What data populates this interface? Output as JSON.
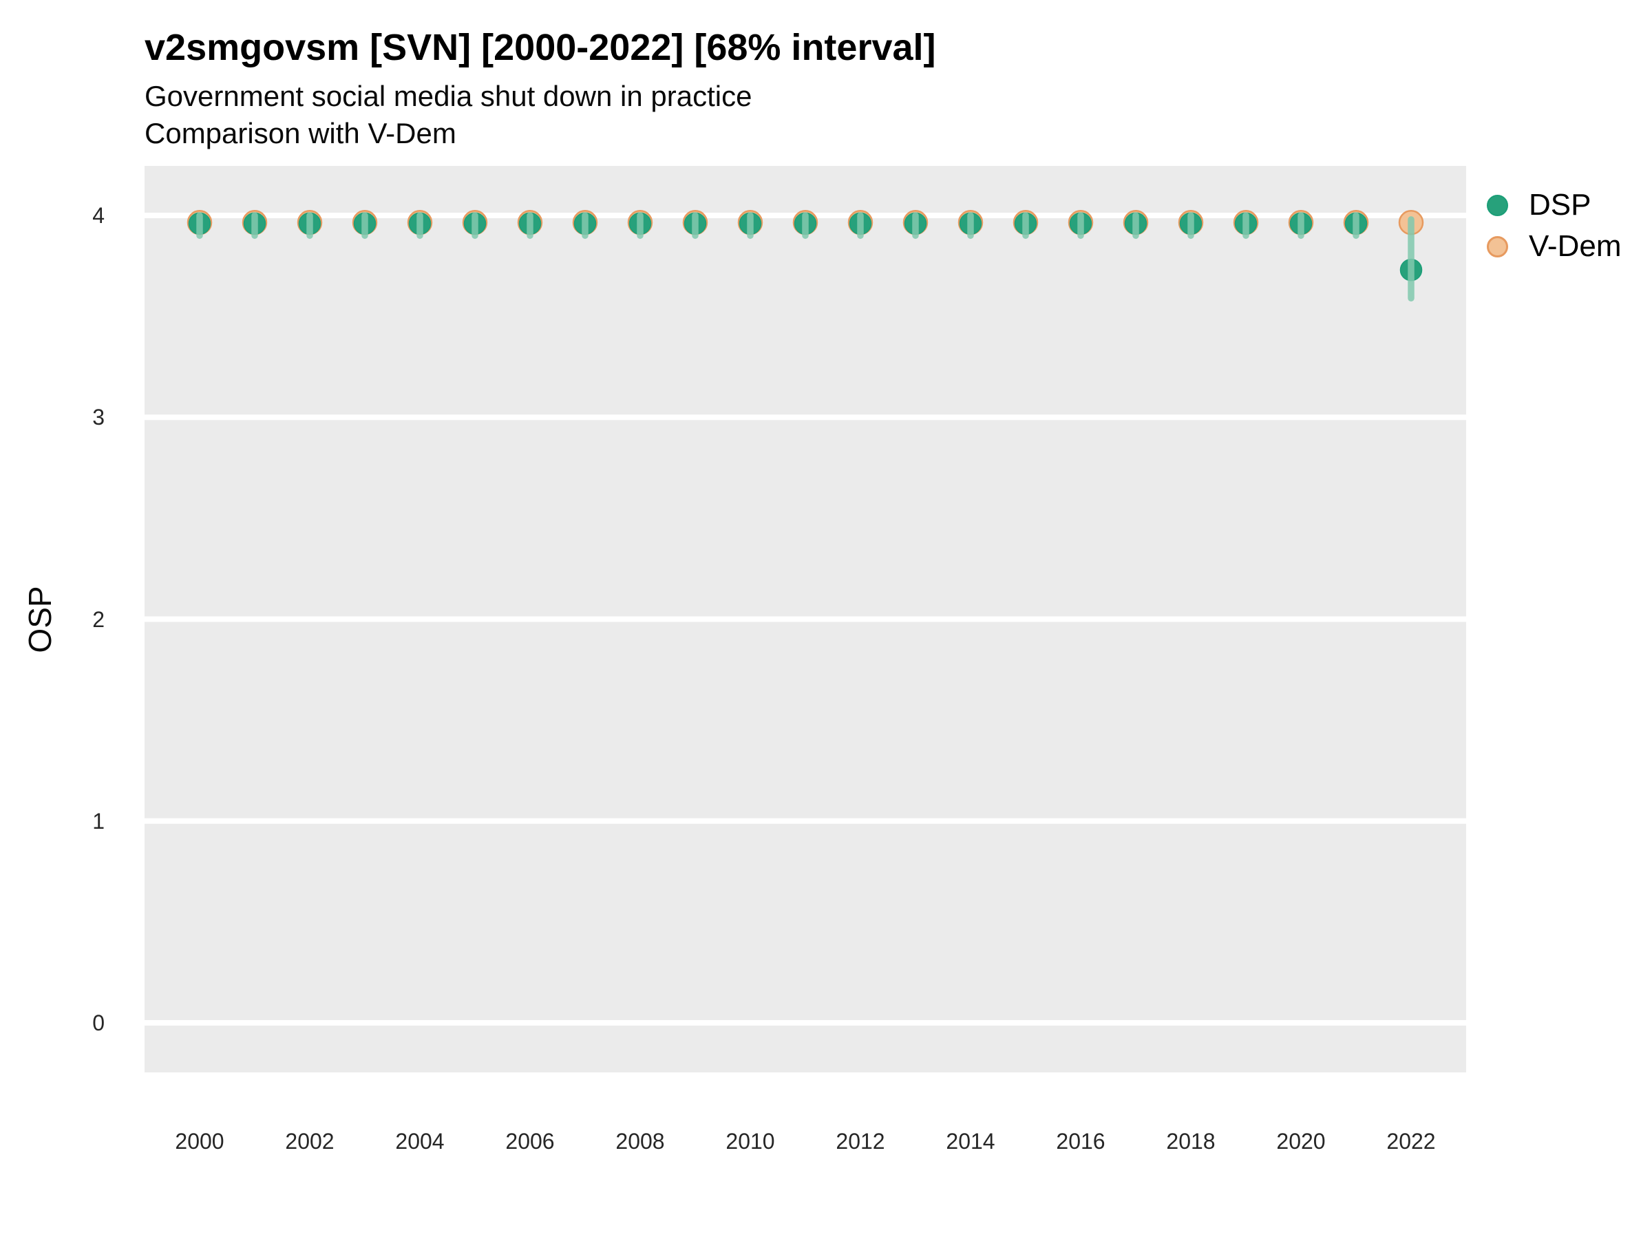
{
  "header": {
    "title": "v2smgovsm [SVN] [2000-2022] [68% interval]",
    "subtitle": "Government social media shut down in practice",
    "subtitle2": "Comparison with V-Dem"
  },
  "chart_data": {
    "type": "scatter",
    "title": "v2smgovsm [SVN] [2000-2022] [68% interval]",
    "subtitle": "Government social media shut down in practice",
    "subtitle2": "Comparison with V-Dem",
    "xlabel": "",
    "ylabel": "OSP",
    "ylim": [
      -0.25,
      4.25
    ],
    "yticks": [
      0,
      1,
      2,
      3,
      4
    ],
    "xticks": [
      2000,
      2002,
      2004,
      2006,
      2008,
      2010,
      2012,
      2014,
      2016,
      2018,
      2020,
      2022
    ],
    "grid": "horizontal-major-only",
    "legend_position": "right",
    "interval_level": "68%",
    "x": [
      2000,
      2001,
      2002,
      2003,
      2004,
      2005,
      2006,
      2007,
      2008,
      2009,
      2010,
      2011,
      2012,
      2013,
      2014,
      2015,
      2016,
      2017,
      2018,
      2019,
      2020,
      2021,
      2022
    ],
    "series": [
      {
        "name": "DSP",
        "style": "point-with-interval",
        "estimates": [
          3.96,
          3.96,
          3.96,
          3.96,
          3.96,
          3.96,
          3.96,
          3.96,
          3.96,
          3.96,
          3.96,
          3.96,
          3.96,
          3.96,
          3.96,
          3.96,
          3.96,
          3.96,
          3.96,
          3.96,
          3.96,
          3.96,
          3.73
        ],
        "interval_low": [
          3.9,
          3.9,
          3.9,
          3.9,
          3.9,
          3.9,
          3.9,
          3.9,
          3.9,
          3.9,
          3.9,
          3.9,
          3.9,
          3.9,
          3.9,
          3.9,
          3.9,
          3.9,
          3.9,
          3.9,
          3.9,
          3.9,
          3.59
        ],
        "interval_high": [
          4.0,
          4.0,
          4.0,
          4.0,
          4.0,
          4.0,
          4.0,
          4.0,
          4.0,
          4.0,
          4.0,
          4.0,
          4.0,
          4.0,
          4.0,
          4.0,
          4.0,
          4.0,
          4.0,
          4.0,
          4.0,
          4.0,
          3.98
        ]
      },
      {
        "name": "V-Dem",
        "style": "point",
        "estimates": [
          3.96,
          3.96,
          3.96,
          3.96,
          3.96,
          3.96,
          3.96,
          3.96,
          3.96,
          3.96,
          3.96,
          3.96,
          3.96,
          3.96,
          3.96,
          3.96,
          3.96,
          3.96,
          3.96,
          3.96,
          3.96,
          3.96,
          3.96
        ]
      }
    ],
    "colors": {
      "dsp_fill": "#27A17B",
      "dsp_stroke": "#1B9E77",
      "dsp_interval": "#82C9AE",
      "vdem_fill": "#F3C295",
      "vdem_stroke": "#E79A5F",
      "plot_background": "#EBEBEB",
      "gridline": "#FFFFFF"
    }
  }
}
